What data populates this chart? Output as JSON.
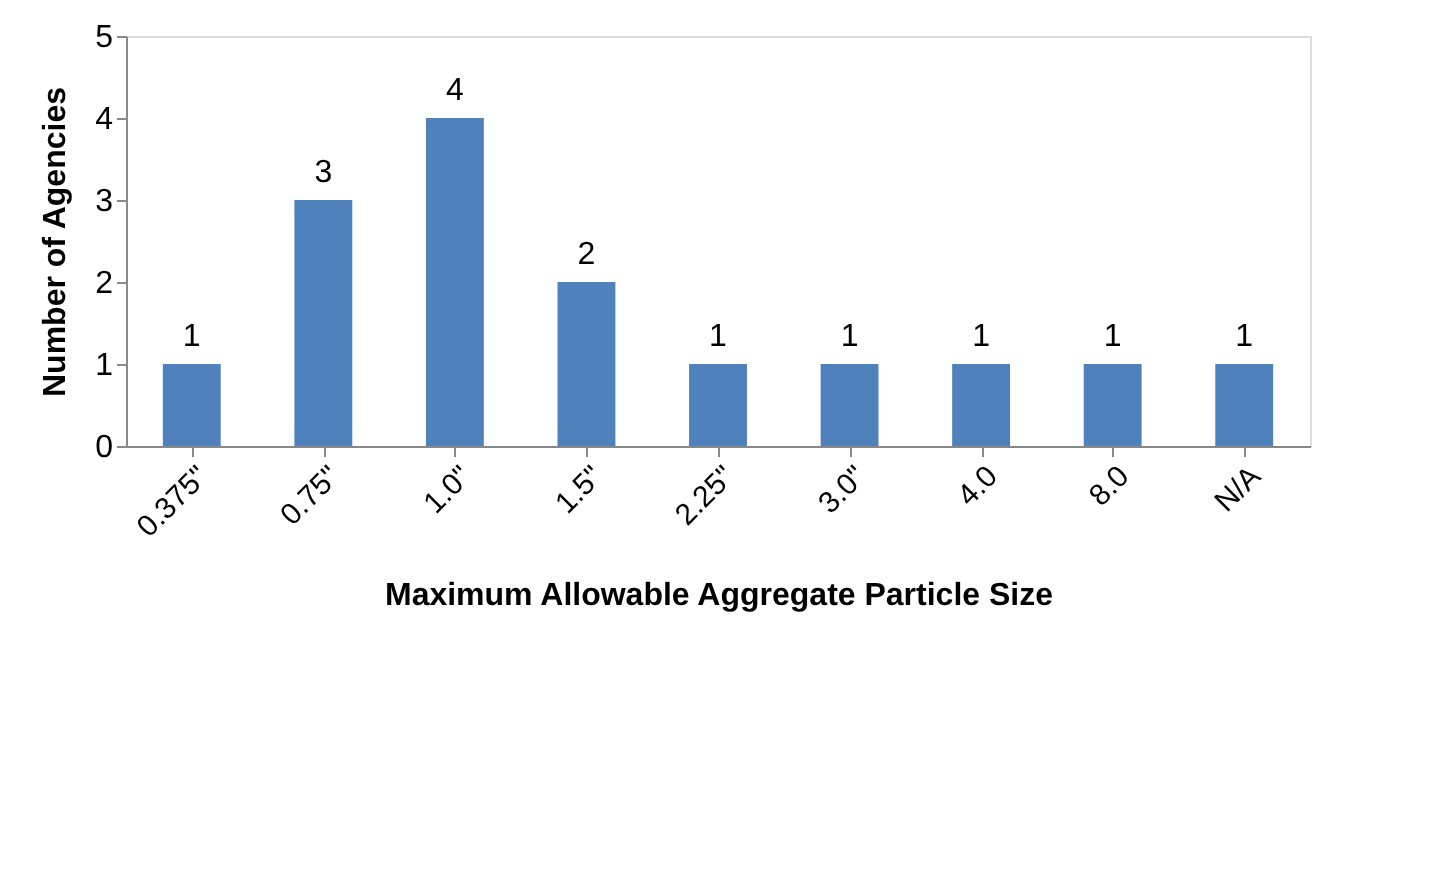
{
  "chart_data": {
    "type": "bar",
    "xlabel": "Maximum Allowable Aggregate Particle Size",
    "ylabel": "Number of Agencies",
    "categories": [
      "0.375\"",
      "0.75\"",
      "1.0\"",
      "1.5\"",
      "2.25\"",
      "3.0\"",
      "4.0",
      "8.0",
      "N/A"
    ],
    "values": [
      1,
      3,
      4,
      2,
      1,
      1,
      1,
      1,
      1
    ],
    "color": "#4f81bd",
    "ylim": [
      0,
      5
    ],
    "yticks": [
      0,
      1,
      2,
      3,
      4,
      5
    ],
    "grid": false,
    "data_labels": true
  }
}
